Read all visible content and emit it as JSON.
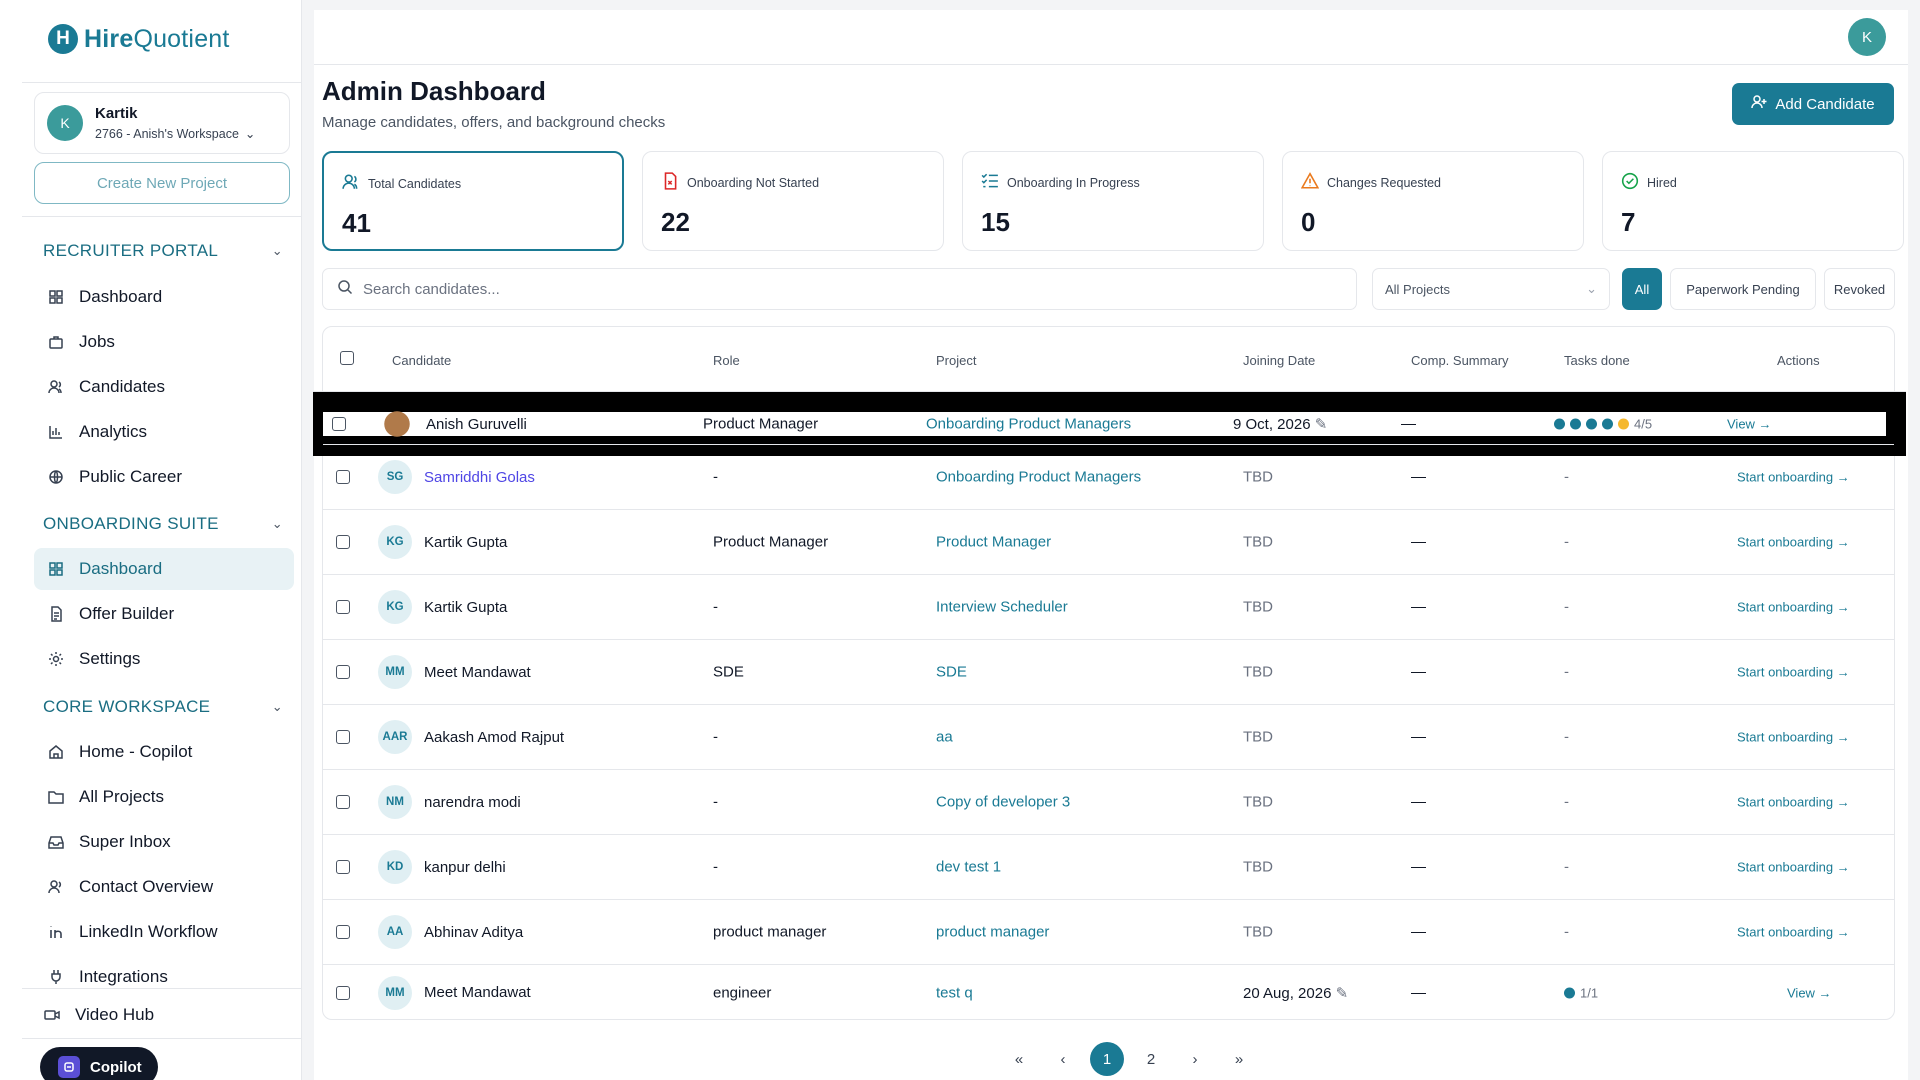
{
  "brand": {
    "name_bold": "Hire",
    "name_rest": "Quotient",
    "mark": "H"
  },
  "workspace": {
    "avatar": "K",
    "user": "Kartik",
    "label": "2766 - Anish's Workspace"
  },
  "sidebar": {
    "create_project": "Create New Project",
    "sections": [
      {
        "title": "RECRUITER PORTAL",
        "items": [
          {
            "label": "Dashboard",
            "icon": "grid-icon"
          },
          {
            "label": "Jobs",
            "icon": "briefcase-icon"
          },
          {
            "label": "Candidates",
            "icon": "users-icon"
          },
          {
            "label": "Analytics",
            "icon": "bar-chart-icon"
          },
          {
            "label": "Public Career",
            "icon": "globe-icon"
          }
        ]
      },
      {
        "title": "ONBOARDING SUITE",
        "items": [
          {
            "label": "Dashboard",
            "icon": "grid-icon",
            "active": true
          },
          {
            "label": "Offer Builder",
            "icon": "document-icon"
          },
          {
            "label": "Settings",
            "icon": "gear-icon"
          }
        ]
      },
      {
        "title": "CORE WORKSPACE",
        "items": [
          {
            "label": "Home - Copilot",
            "icon": "home-icon"
          },
          {
            "label": "All Projects",
            "icon": "folder-icon"
          },
          {
            "label": "Super Inbox",
            "icon": "inbox-icon"
          },
          {
            "label": "Contact Overview",
            "icon": "contacts-icon"
          },
          {
            "label": "LinkedIn Workflow",
            "icon": "linkedin-icon"
          },
          {
            "label": "Integrations",
            "icon": "plug-icon"
          }
        ]
      }
    ],
    "video_hub": "Video Hub",
    "copilot": "Copilot"
  },
  "header": {
    "avatar": "K",
    "title": "Admin Dashboard",
    "subtitle": "Manage candidates, offers, and background checks",
    "add_candidate": "Add Candidate"
  },
  "stats": [
    {
      "label": "Total Candidates",
      "value": "41",
      "icon": "users-icon",
      "color": "#1a7a94"
    },
    {
      "label": "Onboarding Not Started",
      "value": "22",
      "icon": "file-x-icon",
      "color": "#dc2626"
    },
    {
      "label": "Onboarding In Progress",
      "value": "15",
      "icon": "checklist-icon",
      "color": "#1a7a94"
    },
    {
      "label": "Changes Requested",
      "value": "0",
      "icon": "warning-icon",
      "color": "#ea7a1e"
    },
    {
      "label": "Hired",
      "value": "7",
      "icon": "check-circle-icon",
      "color": "#16a34a"
    }
  ],
  "filters": {
    "search_placeholder": "Search candidates...",
    "project_select": "All Projects",
    "chips": [
      "All",
      "Paperwork Pending",
      "Revoked"
    ]
  },
  "table": {
    "columns": [
      "Candidate",
      "Role",
      "Project",
      "Joining Date",
      "Comp. Summary",
      "Tasks done",
      "Actions"
    ],
    "rows": [
      {
        "initials": "",
        "name": "Anish Guruvelli",
        "role": "Product Manager",
        "project": "Onboarding Product Managers",
        "date": "9 Oct, 2026",
        "comp": "—",
        "tasks": "4/5",
        "action": "View →"
      },
      {
        "initials": "SG",
        "name": "Samriddhi Golas",
        "role": "-",
        "project": "Onboarding Product Managers",
        "date": "TBD",
        "comp": "—",
        "tasks": "-",
        "action": "Start onboarding →"
      },
      {
        "initials": "KG",
        "name": "Kartik Gupta",
        "role": "Product Manager",
        "project": "Product Manager",
        "date": "TBD",
        "comp": "—",
        "tasks": "-",
        "action": "Start onboarding →"
      },
      {
        "initials": "KG",
        "name": "Kartik Gupta",
        "role": "-",
        "project": "Interview Scheduler",
        "date": "TBD",
        "comp": "—",
        "tasks": "-",
        "action": "Start onboarding →"
      },
      {
        "initials": "MM",
        "name": "Meet Mandawat",
        "role": "SDE",
        "project": "SDE",
        "date": "TBD",
        "comp": "—",
        "tasks": "-",
        "action": "Start onboarding →"
      },
      {
        "initials": "AAR",
        "name": "Aakash Amod Rajput",
        "role": "-",
        "project": "aa",
        "date": "TBD",
        "comp": "—",
        "tasks": "-",
        "action": "Start onboarding →"
      },
      {
        "initials": "NM",
        "name": "narendra modi",
        "role": "-",
        "project": "Copy of developer 3",
        "date": "TBD",
        "comp": "—",
        "tasks": "-",
        "action": "Start onboarding →"
      },
      {
        "initials": "KD",
        "name": "kanpur delhi",
        "role": "-",
        "project": "dev test 1",
        "date": "TBD",
        "comp": "—",
        "tasks": "-",
        "action": "Start onboarding →"
      },
      {
        "initials": "AA",
        "name": "Abhinav Aditya",
        "role": "product manager",
        "project": "product manager",
        "date": "TBD",
        "comp": "—",
        "tasks": "-",
        "action": "Start onboarding →"
      },
      {
        "initials": "MM",
        "name": "Meet Mandawat",
        "role": "engineer",
        "project": "test q",
        "date": "20 Aug, 2026",
        "comp": "—",
        "tasks": "1/1",
        "action": "View →"
      }
    ]
  },
  "pagination": {
    "first": "«",
    "prev": "‹",
    "pages": [
      "1",
      "2"
    ],
    "next": "›",
    "last": "»"
  }
}
